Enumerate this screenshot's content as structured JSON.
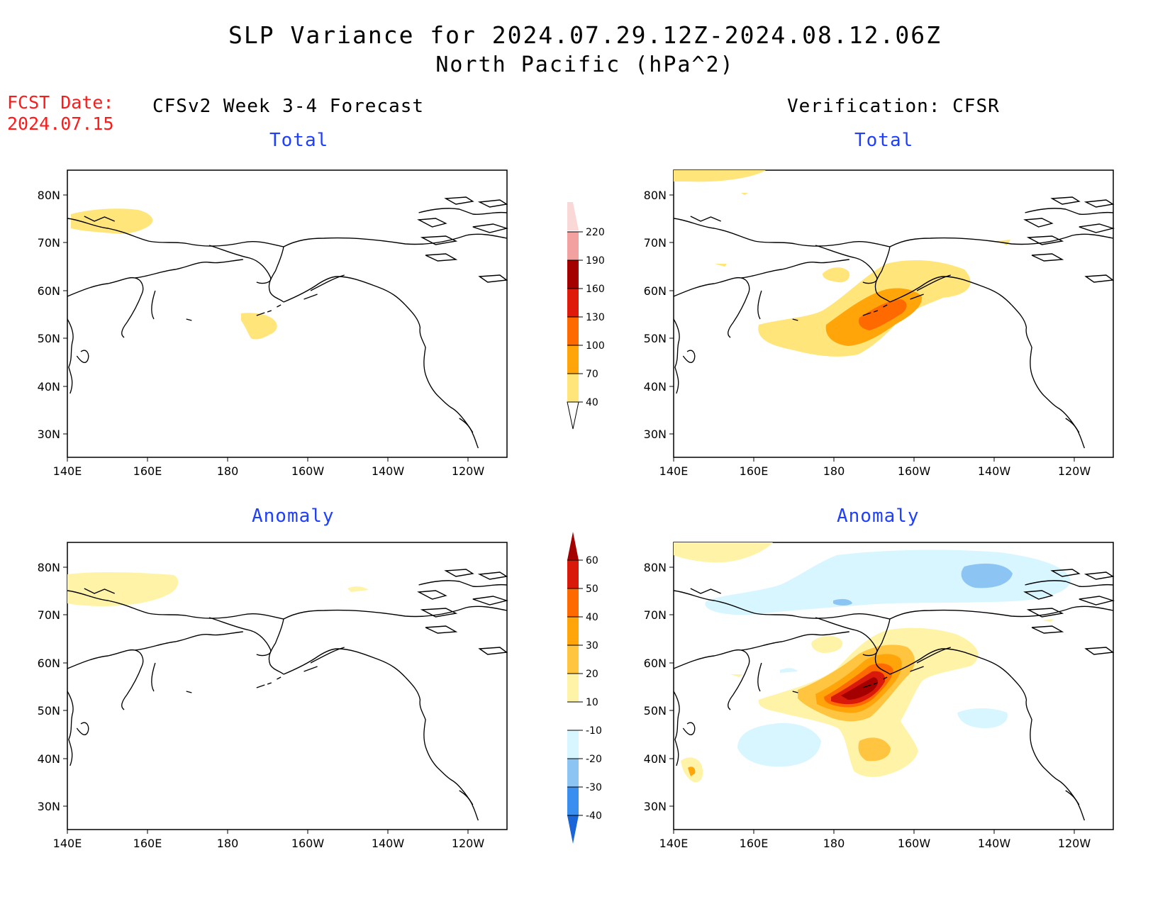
{
  "header": {
    "title": "SLP Variance for 2024.07.29.12Z-2024.08.12.06Z",
    "subtitle": "North Pacific (hPa^2)"
  },
  "fcst": {
    "label": "FCST Date:",
    "date": "2024.07.15"
  },
  "columns": {
    "left_title": "CFSv2 Week 3-4 Forecast",
    "right_title": "Verification: CFSR"
  },
  "panels": {
    "forecast_total_title": "Total",
    "verification_total_title": "Total",
    "forecast_anomaly_title": "Anomaly",
    "verification_anomaly_title": "Anomaly"
  },
  "axes": {
    "lat_labels": [
      "80N",
      "70N",
      "60N",
      "50N",
      "40N",
      "30N"
    ],
    "lon_labels": [
      "140E",
      "160E",
      "180",
      "160W",
      "140W",
      "120W"
    ]
  },
  "legends": {
    "total": {
      "levels": [
        "40",
        "70",
        "100",
        "130",
        "160",
        "190",
        "220"
      ],
      "colors": [
        "#ffe57a",
        "#ffa50a",
        "#ff6a00",
        "#e01a0a",
        "#a50000",
        "#f2a0a0",
        "#fbd8d8"
      ]
    },
    "anomaly": {
      "levels": [
        "-40",
        "-30",
        "-20",
        "-10",
        "10",
        "20",
        "30",
        "40",
        "50",
        "60"
      ],
      "colors": [
        "#1a66d9",
        "#3a8ef0",
        "#8cc4f4",
        "#d8f6ff",
        "#ffffff",
        "#fff3a8",
        "#ffc440",
        "#ffa50a",
        "#ff6a00",
        "#d91a0a",
        "#a50000"
      ]
    }
  }
}
